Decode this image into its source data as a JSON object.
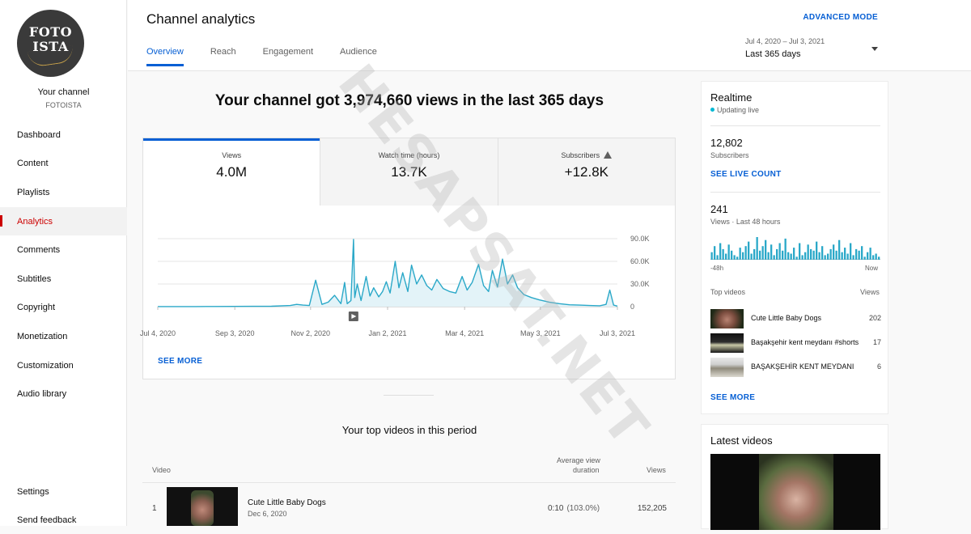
{
  "sidebar": {
    "logo_line1": "FOTO",
    "logo_line2": "ISTA",
    "your_channel": "Your channel",
    "channel_handle": "FOTOISTA",
    "items": [
      {
        "label": "Dashboard"
      },
      {
        "label": "Content"
      },
      {
        "label": "Playlists"
      },
      {
        "label": "Analytics",
        "active": true
      },
      {
        "label": "Comments"
      },
      {
        "label": "Subtitles"
      },
      {
        "label": "Copyright"
      },
      {
        "label": "Monetization"
      },
      {
        "label": "Customization"
      },
      {
        "label": "Audio library"
      }
    ],
    "bottom_items": [
      {
        "label": "Settings"
      },
      {
        "label": "Send feedback"
      }
    ]
  },
  "header": {
    "title": "Channel analytics",
    "advanced_mode": "ADVANCED MODE",
    "tabs": [
      {
        "label": "Overview",
        "active": true
      },
      {
        "label": "Reach"
      },
      {
        "label": "Engagement"
      },
      {
        "label": "Audience"
      }
    ],
    "date_range": "Jul 4, 2020 – Jul 3, 2021",
    "period": "Last 365 days"
  },
  "main": {
    "headline": "Your channel got 3,974,660 views in the last 365 days",
    "metrics": [
      {
        "label": "Views",
        "value": "4.0M",
        "active": true
      },
      {
        "label": "Watch time (hours)",
        "value": "13.7K"
      },
      {
        "label": "Subscribers",
        "value": "+12.8K",
        "warning": true
      }
    ],
    "see_more": "SEE MORE",
    "top_videos_title": "Your top videos in this period",
    "table": {
      "col_video": "Video",
      "col_avd_line1": "Average view",
      "col_avd_line2": "duration",
      "col_views": "Views",
      "rows": [
        {
          "rank": "1",
          "title": "Cute Little Baby Dogs",
          "date": "Dec 6, 2020",
          "avd": "0:10",
          "avd_pct": "(103.0%)",
          "views": "152,205"
        }
      ]
    }
  },
  "chart_data": {
    "type": "line",
    "series_name": "Views",
    "y_ticks": [
      "90.0K",
      "60.0K",
      "30.0K",
      "0"
    ],
    "ylim": [
      0,
      90000
    ],
    "x_ticks": [
      "Jul 4, 2020",
      "Sep 3, 2020",
      "Nov 2, 2020",
      "Jan 2, 2021",
      "Mar 4, 2021",
      "May 3, 2021",
      "Jul 3, 2021"
    ],
    "x": [
      "2020-07-04",
      "2020-07-19",
      "2020-08-03",
      "2020-08-18",
      "2020-09-02",
      "2020-09-17",
      "2020-10-02",
      "2020-10-17",
      "2020-10-22",
      "2020-10-27",
      "2020-11-01",
      "2020-11-06",
      "2020-11-11",
      "2020-11-16",
      "2020-11-21",
      "2020-11-26",
      "2020-11-29",
      "2020-12-01",
      "2020-12-04",
      "2020-12-06",
      "2020-12-07",
      "2020-12-09",
      "2020-12-12",
      "2020-12-16",
      "2020-12-19",
      "2020-12-22",
      "2020-12-26",
      "2020-12-29",
      "2021-01-01",
      "2021-01-04",
      "2021-01-08",
      "2021-01-11",
      "2021-01-14",
      "2021-01-18",
      "2021-01-21",
      "2021-01-25",
      "2021-01-29",
      "2021-02-02",
      "2021-02-06",
      "2021-02-10",
      "2021-02-15",
      "2021-02-20",
      "2021-02-25",
      "2021-03-02",
      "2021-03-06",
      "2021-03-10",
      "2021-03-15",
      "2021-03-19",
      "2021-03-23",
      "2021-03-26",
      "2021-03-30",
      "2021-04-03",
      "2021-04-07",
      "2021-04-11",
      "2021-04-15",
      "2021-04-20",
      "2021-04-26",
      "2021-05-02",
      "2021-05-10",
      "2021-05-18",
      "2021-05-26",
      "2021-06-03",
      "2021-06-11",
      "2021-06-19",
      "2021-06-24",
      "2021-06-27",
      "2021-06-30",
      "2021-07-03"
    ],
    "values": [
      100,
      100,
      150,
      200,
      300,
      400,
      500,
      1500,
      3000,
      2000,
      1500,
      35000,
      3000,
      6000,
      15000,
      4000,
      32000,
      4000,
      8000,
      89000,
      12000,
      30000,
      8000,
      40000,
      14000,
      25000,
      13000,
      20000,
      33000,
      18000,
      60000,
      25000,
      45000,
      20000,
      55000,
      30000,
      42000,
      28000,
      22000,
      36000,
      24000,
      20000,
      18000,
      40000,
      22000,
      32000,
      56000,
      28000,
      20000,
      48000,
      26000,
      63000,
      30000,
      42000,
      25000,
      16000,
      12000,
      9000,
      6000,
      4000,
      2500,
      2000,
      1500,
      1200,
      3000,
      22000,
      2000,
      800
    ],
    "realtime_spark_values": [
      10,
      18,
      6,
      22,
      14,
      8,
      20,
      12,
      6,
      4,
      16,
      10,
      18,
      24,
      8,
      14,
      30,
      12,
      18,
      26,
      10,
      20,
      6,
      14,
      22,
      12,
      28,
      10,
      8,
      16,
      4,
      22,
      6,
      10,
      20,
      14,
      12,
      24,
      10,
      18,
      6,
      8,
      14,
      20,
      12,
      26,
      10,
      16,
      8,
      22,
      6,
      14,
      12,
      18,
      4,
      10,
      16,
      6,
      8,
      4
    ]
  },
  "realtime": {
    "title": "Realtime",
    "status": "Updating live",
    "subscribers_value": "12,802",
    "subscribers_label": "Subscribers",
    "see_live_count": "SEE LIVE COUNT",
    "views_value": "241",
    "views_label": "Views · Last 48 hours",
    "spark_left": "-48h",
    "spark_right": "Now",
    "top_videos_label": "Top videos",
    "views_col": "Views",
    "top_videos": [
      {
        "title": "Cute Little Baby Dogs",
        "views": "202"
      },
      {
        "title": "Başakşehir kent meydanı #shorts",
        "views": "17"
      },
      {
        "title": "BAŞAKŞEHİR KENT MEYDANI",
        "views": "6"
      }
    ],
    "see_more": "SEE MORE"
  },
  "latest": {
    "title": "Latest videos"
  },
  "watermark": "HESAPSAT.NET",
  "colors": {
    "accent": "#065fd4",
    "chart_line": "#2aa8c8",
    "chart_fill": "#e3f3f8",
    "active_nav": "#cc0000",
    "live_dot": "#00b8d4"
  }
}
